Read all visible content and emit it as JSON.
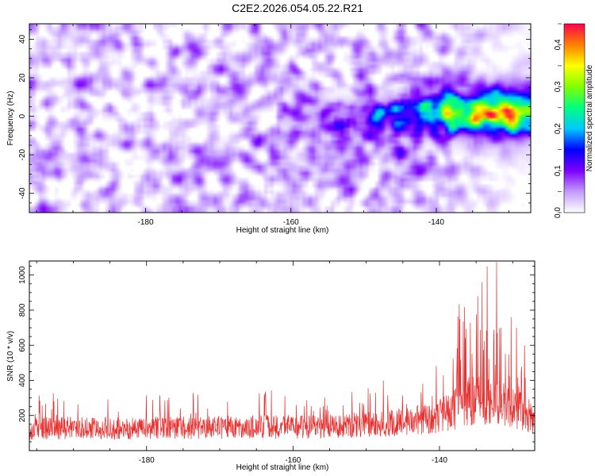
{
  "title": "C2E2.2026.054.05.22.R21",
  "chart_data": [
    {
      "type": "heatmap",
      "xlabel": "Height of straight line (km)",
      "ylabel": "Frequency (Hz)",
      "xlim": [
        -196,
        -127
      ],
      "ylim": [
        -50,
        48
      ],
      "xticks": [
        -180,
        -160,
        -140
      ],
      "yticks": [
        -40,
        -20,
        0,
        20,
        40
      ],
      "colorbar": {
        "label": "Normalized spectral amplitude",
        "range": [
          0,
          0.45
        ],
        "ticks": [
          0.0,
          0.1,
          0.2,
          0.3,
          0.4
        ],
        "colors": [
          "#ffffff",
          "#c39bff",
          "#7d00ff",
          "#0000ff",
          "#00c8ff",
          "#00ff80",
          "#80ff00",
          "#ffff00",
          "#ff8000",
          "#ff0050"
        ]
      },
      "features": {
        "band_center_hz": 0,
        "band_start_km": -162,
        "band_width_hz": 14,
        "peak_height_km": -132,
        "peak_amplitude": 0.45,
        "background_amplitude": 0.06
      }
    },
    {
      "type": "line",
      "xlabel": "Height of straight line (km)",
      "ylabel": "SNR (10 * v/v)",
      "xlim": [
        -196,
        -127
      ],
      "ylim": [
        0,
        1080
      ],
      "xticks": [
        -180,
        -160,
        -140
      ],
      "yticks": [
        200,
        400,
        600,
        800,
        1000
      ],
      "series": [
        {
          "name": "SNR",
          "color": "#e83030",
          "x": [
            -196,
            -190,
            -184,
            -178,
            -172,
            -166,
            -160,
            -155,
            -150,
            -145,
            -141,
            -138,
            -137,
            -135,
            -134,
            -132.5,
            -131,
            -129,
            -127
          ],
          "y": [
            140,
            145,
            140,
            145,
            145,
            150,
            150,
            150,
            165,
            185,
            200,
            260,
            310,
            330,
            320,
            310,
            280,
            250,
            200
          ],
          "peaks": [
            {
              "x": -137.2,
              "y": 750
            },
            {
              "x": -136.5,
              "y": 640
            },
            {
              "x": -134.8,
              "y": 880
            },
            {
              "x": -134.2,
              "y": 960
            },
            {
              "x": -133.5,
              "y": 1050
            },
            {
              "x": -132.2,
              "y": 1075
            },
            {
              "x": -131.6,
              "y": 700
            },
            {
              "x": -130.2,
              "y": 760
            },
            {
              "x": -129.5,
              "y": 700
            },
            {
              "x": -128.4,
              "y": 600
            }
          ]
        }
      ]
    }
  ]
}
